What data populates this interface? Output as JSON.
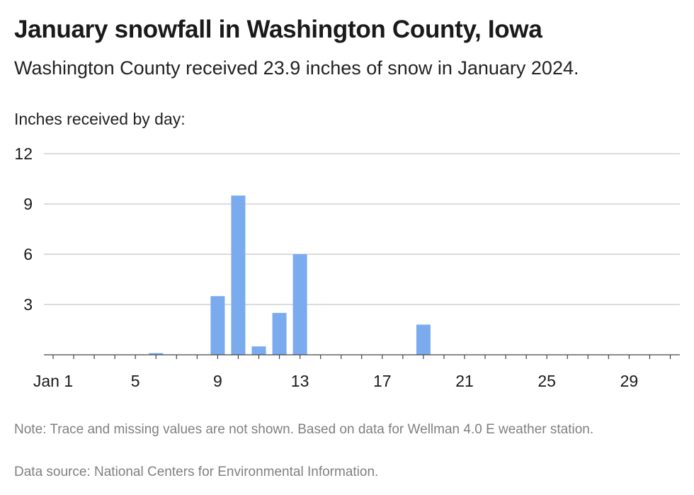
{
  "header": {
    "title": "January snowfall in Washington County, Iowa",
    "subtitle": "Washington County received 23.9 inches of snow in January 2024."
  },
  "footer": {
    "note": "Note: Trace and missing values are not shown. Based on data for Wellman 4.0 E weather station.",
    "source": "Data source: National Centers for Environmental Information."
  },
  "colors": {
    "bar": "#7aabee",
    "grid": "#c8c8c8",
    "axis": "#444444"
  },
  "chart_data": {
    "type": "bar",
    "title": "January snowfall in Washington County, Iowa",
    "subtitle": "Washington County received 23.9 inches of snow in January 2024.",
    "ylabel": "Inches received by day:",
    "xlabel": "",
    "ylim": [
      0,
      12
    ],
    "yticks": [
      3,
      6,
      9,
      12
    ],
    "xlim": [
      1,
      31
    ],
    "xticks": [
      {
        "day": 1,
        "label": "Jan 1"
      },
      {
        "day": 5,
        "label": "5"
      },
      {
        "day": 9,
        "label": "9"
      },
      {
        "day": 13,
        "label": "13"
      },
      {
        "day": 17,
        "label": "17"
      },
      {
        "day": 21,
        "label": "21"
      },
      {
        "day": 25,
        "label": "25"
      },
      {
        "day": 29,
        "label": "29"
      }
    ],
    "grid": true,
    "legend": "none",
    "series": [
      {
        "values": [
          {
            "day": 6,
            "value": 0.1
          },
          {
            "day": 9,
            "value": 3.5
          },
          {
            "day": 10,
            "value": 9.5
          },
          {
            "day": 11,
            "value": 0.5
          },
          {
            "day": 12,
            "value": 2.5
          },
          {
            "day": 13,
            "value": 6.0
          },
          {
            "day": 19,
            "value": 1.8
          }
        ]
      }
    ]
  }
}
